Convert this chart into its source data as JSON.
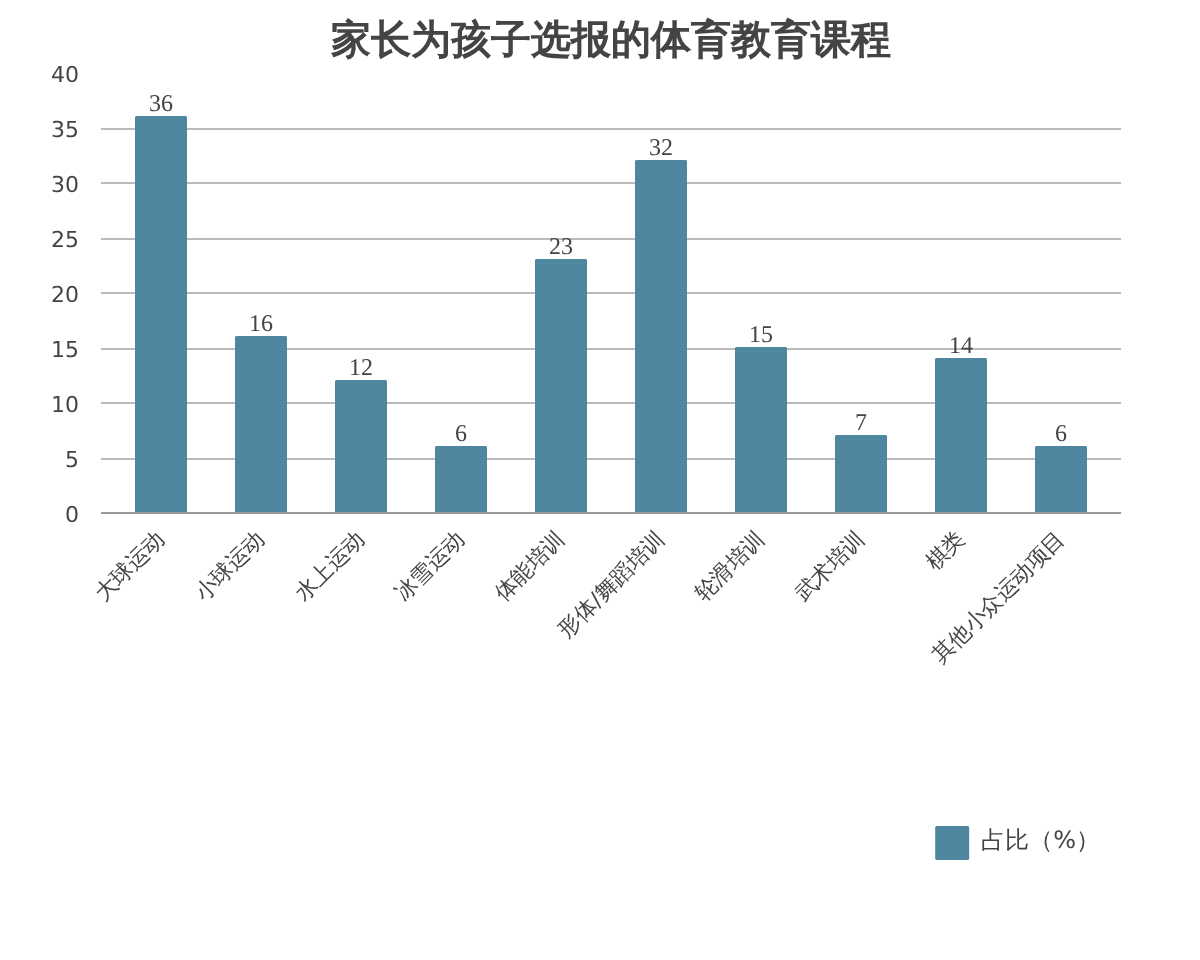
{
  "chart_data": {
    "type": "bar",
    "title": "家长为孩子选报的体育教育课程",
    "categories": [
      "大球运动",
      "小球运动",
      "水上运动",
      "冰雪运动",
      "体能培训",
      "形体/舞蹈培训",
      "轮滑培训",
      "武术培训",
      "棋类",
      "其他小众运动项目"
    ],
    "series": [
      {
        "name": "占比（%）",
        "color": "#4f86a0",
        "values": [
          36,
          16,
          12,
          6,
          23,
          32,
          15,
          7,
          14,
          6
        ]
      }
    ],
    "ylim": [
      0,
      40
    ],
    "yticks": [
      0,
      5,
      10,
      15,
      20,
      25,
      30,
      35,
      40
    ],
    "grid": "y",
    "legend": "bottom",
    "data_labels": true
  }
}
